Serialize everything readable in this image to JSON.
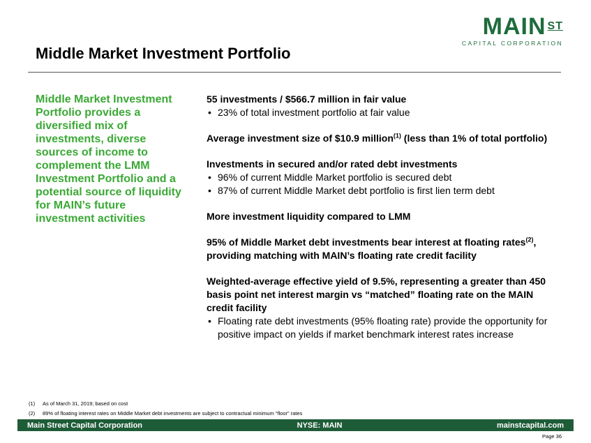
{
  "logo": {
    "main": "MAIN",
    "st": "ST",
    "sub": "CAPITAL CORPORATION"
  },
  "title": "Middle Market Investment Portfolio",
  "sidebar_text": "Middle Market Investment Portfolio provides a diversified mix of investments, diverse sources of income to complement the LMM Investment Portfolio and a potential source of liquidity for MAIN’s future investment activities",
  "sections": [
    {
      "head": "55 investments / $566.7 million in fair value",
      "bullets": [
        "23% of total investment portfolio at fair value"
      ]
    },
    {
      "head_before": "Average investment size of $10.9 million",
      "sup": "(1)",
      "head_after": " (less than 1% of total portfolio)"
    },
    {
      "head": "Investments in secured and/or rated debt investments",
      "bullets": [
        "96% of current Middle Market portfolio is secured debt",
        "87% of current Middle Market debt portfolio is first lien term debt"
      ]
    },
    {
      "head": "More investment liquidity compared to LMM"
    },
    {
      "head_before": "95% of Middle Market debt investments bear interest at floating rates",
      "sup": "(2)",
      "head_after": ", providing matching with MAIN’s floating rate credit facility"
    },
    {
      "head": "Weighted-average effective yield of 9.5%, representing a greater than 450 basis point net interest margin vs “matched” floating rate on the MAIN credit facility",
      "bullets": [
        "Floating rate debt investments (95% floating rate) provide the opportunity for positive impact on yields if market benchmark interest rates increase"
      ]
    }
  ],
  "footnotes": [
    {
      "mark": "(1)",
      "text": "As of March 31, 2019; based on cost"
    },
    {
      "mark": "(2)",
      "text": "89% of floating interest rates on Middle Market debt investments are subject to contractual minimum “floor” rates"
    }
  ],
  "footer": {
    "left": "Main Street Capital Corporation",
    "center": "NYSE: MAIN",
    "right": "mainstcapital.com"
  },
  "page_number": "Page  36",
  "colors": {
    "brand_green": "#1e6b3c",
    "accent_green": "#3aa935",
    "footer_green": "#1e5c38"
  }
}
